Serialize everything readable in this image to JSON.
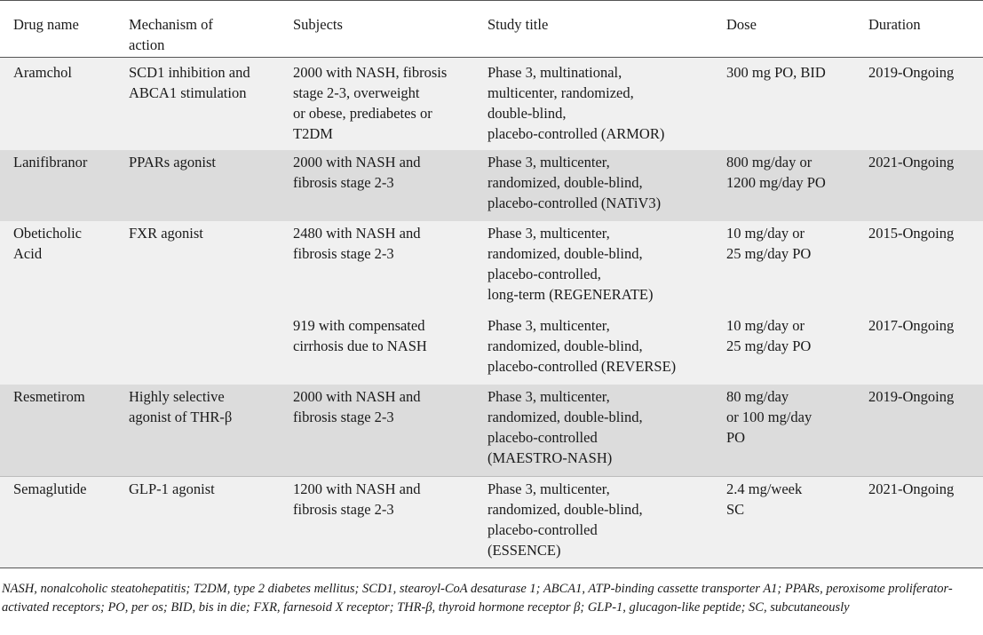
{
  "headers": [
    "Drug name",
    "Mechanism of\naction",
    "Subjects",
    "Study title",
    "Dose",
    "Duration"
  ],
  "rows": [
    {
      "drug": "Aramchol",
      "mechanism": "SCD1 inhibition and\nABCA1 stimulation",
      "subjects": "2000 with NASH, fibrosis\nstage 2-3, overweight\nor obese, prediabetes or\nT2DM",
      "study": "Phase 3, multinational,\nmulticenter, randomized,\ndouble-blind,\nplacebo-controlled (ARMOR)",
      "dose": "300 mg PO, BID",
      "duration": "2019-Ongoing"
    },
    {
      "drug": "Lanifibranor",
      "mechanism": "PPARs agonist",
      "subjects": "2000 with NASH and\nfibrosis stage 2-3",
      "study": "Phase 3, multicenter,\nrandomized, double-blind,\nplacebo-controlled (NATiV3)",
      "dose": "800 mg/day or\n1200 mg/day PO",
      "duration": "2021-Ongoing"
    },
    {
      "drug": "Obeticholic\nAcid",
      "mechanism": "FXR agonist",
      "subjects": "2480 with NASH and\nfibrosis stage 2-3",
      "study": "Phase 3, multicenter,\nrandomized, double-blind,\nplacebo-controlled,\nlong-term (REGENERATE)",
      "dose": "10 mg/day or\n25 mg/day PO",
      "duration": "2015-Ongoing"
    },
    {
      "subjects": "919 with compensated\ncirrhosis due to NASH",
      "study": "Phase 3, multicenter,\nrandomized, double-blind,\nplacebo-controlled (REVERSE)",
      "dose": "10 mg/day or\n25 mg/day PO",
      "duration": "2017-Ongoing"
    },
    {
      "drug": "Resmetirom",
      "mechanism": "Highly selective\nagonist of THR-β",
      "subjects": "2000 with NASH and\nfibrosis stage 2-3",
      "study": "Phase 3, multicenter,\nrandomized, double-blind,\nplacebo-controlled\n(MAESTRO-NASH)",
      "dose": "80 mg/day\nor 100 mg/day\nPO",
      "duration": "2019-Ongoing"
    },
    {
      "drug": "Semaglutide",
      "mechanism": "GLP-1 agonist",
      "subjects": "1200 with NASH and\nfibrosis stage 2-3",
      "study": "Phase 3, multicenter,\nrandomized, double-blind,\nplacebo-controlled\n(ESSENCE)",
      "dose": "2.4 mg/week\nSC",
      "duration": "2021-Ongoing"
    }
  ],
  "footnote": "NASH, nonalcoholic steatohepatitis; T2DM, type 2 diabetes mellitus; SCD1, stearoyl-CoA desaturase 1; ABCA1, ATP-binding cassette transporter A1; PPARs, peroxisome proliferator-activated receptors; PO, per os; BID, bis in die; FXR, farnesoid X receptor; THR-β, thyroid hormone receptor β; GLP-1, glucagon-like peptide; SC, subcutaneously"
}
